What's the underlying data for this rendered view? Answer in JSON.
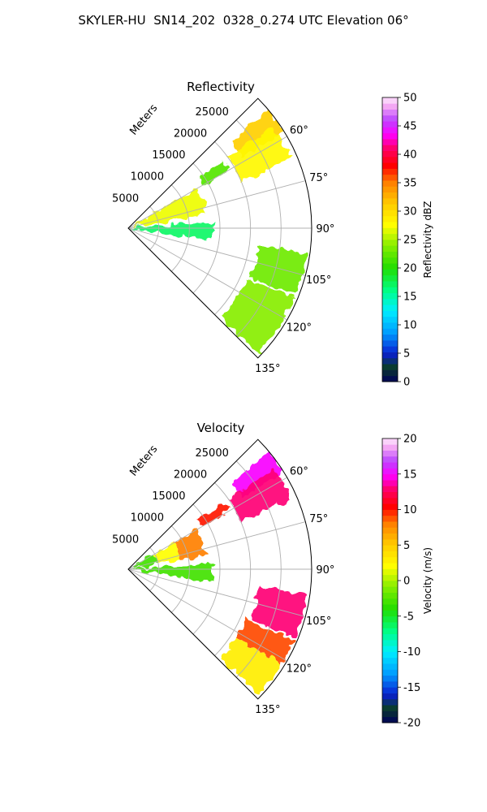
{
  "page": {
    "title": "SKYLER-HU  SN14_202  0328_0.274 UTC Elevation 06°"
  },
  "chart_data": [
    {
      "type": "heatmap",
      "projection": "polar-sector",
      "title": "Reflectivity",
      "r_label": "Meters",
      "theta_range_deg": [
        45,
        135
      ],
      "r_range": [
        0,
        30000
      ],
      "r_ticks": [
        5000,
        10000,
        15000,
        20000,
        25000
      ],
      "theta_ticks": [
        60,
        75,
        90,
        105,
        120,
        135
      ],
      "theta_tick_labels": [
        "60°",
        "75°",
        "90°",
        "105°",
        "120°",
        "135°"
      ],
      "grid": true,
      "colorbar": {
        "label": "Reflectivity dBZ",
        "range": [
          0,
          50
        ],
        "ticks": [
          0,
          5,
          10,
          15,
          20,
          25,
          30,
          35,
          40,
          45,
          50
        ]
      },
      "echo_regions": [
        {
          "theta": [
            60,
            80
          ],
          "r": [
            1000,
            13000
          ],
          "value": 27
        },
        {
          "theta": [
            86,
            99
          ],
          "r": [
            0,
            14000
          ],
          "value": 17
        },
        {
          "theta": [
            50,
            58
          ],
          "r": [
            22000,
            30000
          ],
          "value": 31
        },
        {
          "theta": [
            55,
            67
          ],
          "r": [
            20000,
            29000
          ],
          "value": 28
        },
        {
          "theta": [
            55,
            60
          ],
          "r": [
            14000,
            19000
          ],
          "value": 22
        },
        {
          "theta": [
            98,
            112
          ],
          "r": [
            21500,
            29500
          ],
          "value": 23
        },
        {
          "theta": [
            113,
            134
          ],
          "r": [
            21000,
            29500
          ],
          "value": 24
        }
      ]
    },
    {
      "type": "heatmap",
      "projection": "polar-sector",
      "title": "Velocity",
      "r_label": "Meters",
      "theta_range_deg": [
        45,
        135
      ],
      "r_range": [
        0,
        30000
      ],
      "r_ticks": [
        5000,
        10000,
        15000,
        20000,
        25000
      ],
      "theta_ticks": [
        60,
        75,
        90,
        105,
        120,
        135
      ],
      "theta_tick_labels": [
        "60°",
        "75°",
        "90°",
        "105°",
        "120°",
        "135°"
      ],
      "grid": true,
      "colorbar": {
        "label": "Velocity (m/s)",
        "range": [
          -20,
          20
        ],
        "ticks": [
          -20,
          -15,
          -10,
          -5,
          0,
          5,
          10,
          15,
          20
        ]
      },
      "echo_regions": [
        {
          "theta": [
            60,
            80
          ],
          "r": [
            1000,
            5000
          ],
          "value": -3
        },
        {
          "theta": [
            60,
            80
          ],
          "r": [
            5000,
            8500
          ],
          "value": 2
        },
        {
          "theta": [
            60,
            80
          ],
          "r": [
            8500,
            13000
          ],
          "value": 8
        },
        {
          "theta": [
            86,
            99
          ],
          "r": [
            0,
            14000
          ],
          "value": -3
        },
        {
          "theta": [
            50,
            58
          ],
          "r": [
            22000,
            30000
          ],
          "value": 15
        },
        {
          "theta": [
            55,
            67
          ],
          "r": [
            20000,
            29000
          ],
          "value": 13
        },
        {
          "theta": [
            55,
            60
          ],
          "r": [
            14000,
            19000
          ],
          "value": 10
        },
        {
          "theta": [
            98,
            112
          ],
          "r": [
            21500,
            29500
          ],
          "value": 13
        },
        {
          "theta": [
            113,
            122
          ],
          "r": [
            21000,
            29500
          ],
          "value": 9
        },
        {
          "theta": [
            122,
            134
          ],
          "r": [
            21000,
            29500
          ],
          "value": 3
        }
      ]
    }
  ]
}
